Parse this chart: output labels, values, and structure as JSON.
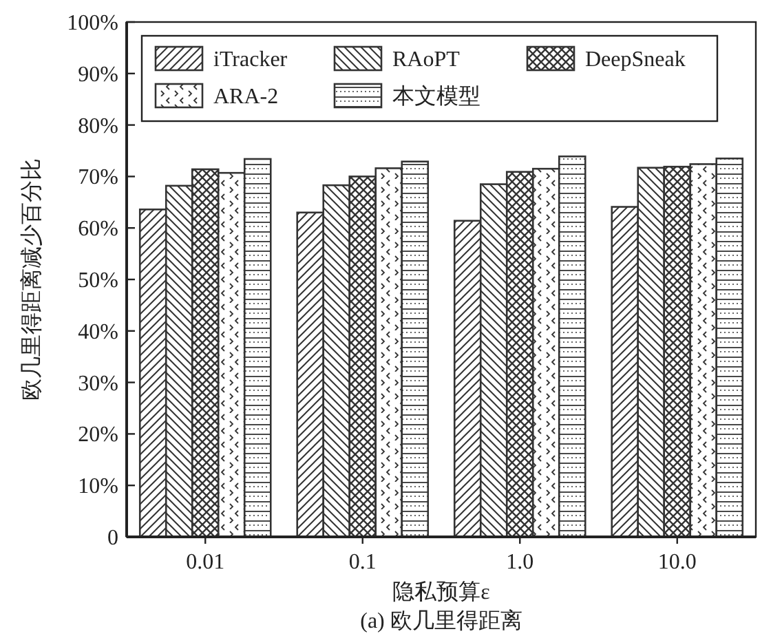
{
  "chart_data": {
    "type": "bar",
    "categories": [
      "0.01",
      "0.1",
      "1.0",
      "10.0"
    ],
    "series": [
      {
        "name": "iTracker",
        "color": "#333333",
        "values": [
          63.6,
          63.0,
          61.4,
          64.1
        ]
      },
      {
        "name": "RAoPT",
        "color": "#333333",
        "values": [
          68.2,
          68.3,
          68.5,
          71.7
        ]
      },
      {
        "name": "DeepSneak",
        "color": "#333333",
        "values": [
          71.4,
          70.0,
          70.9,
          71.9
        ]
      },
      {
        "name": "ARA-2",
        "color": "#333333",
        "values": [
          70.7,
          71.6,
          71.5,
          72.4
        ]
      },
      {
        "name": "本文模型",
        "color": "#333333",
        "values": [
          73.4,
          72.9,
          73.9,
          73.5
        ]
      }
    ],
    "ylim": [
      0,
      100
    ],
    "yticks": [
      0,
      {
        "value": 10,
        "label": "10%"
      },
      {
        "value": 20,
        "label": "20%"
      },
      {
        "value": 30,
        "label": "30%"
      },
      {
        "value": 40,
        "label": "40%"
      },
      {
        "value": 50,
        "label": "50%"
      },
      {
        "value": 60,
        "label": "60%"
      },
      {
        "value": 70,
        "label": "70%"
      },
      {
        "value": 80,
        "label": "80%"
      },
      {
        "value": 90,
        "label": "90%"
      },
      {
        "value": 100,
        "label": "100%"
      }
    ],
    "xlabel": "隐私预算ε",
    "ylabel": "欧几里得距离减少百分比",
    "annotations": [
      "(a) 欧几里得距离"
    ],
    "legend": "top",
    "grid": false
  }
}
